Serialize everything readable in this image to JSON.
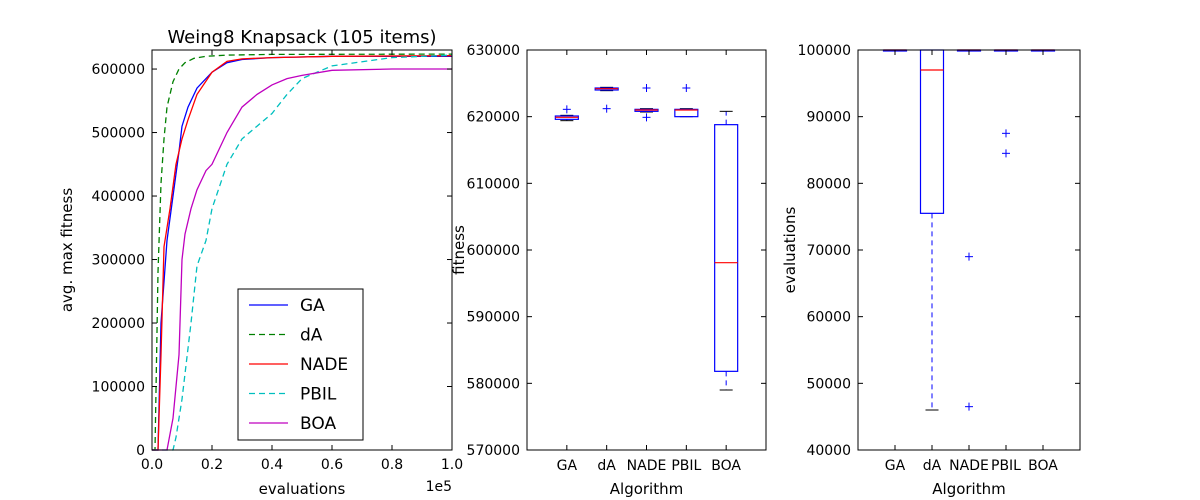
{
  "chart_data": [
    {
      "type": "line",
      "title": "Weing8 Knapsack (105 items)",
      "xlabel": "evaluations",
      "ylabel": "avg. max fitness",
      "x_offset_label": "1e5",
      "xlim": [
        0,
        1.0
      ],
      "ylim": [
        0,
        630000
      ],
      "xticks": [
        "0.0",
        "0.2",
        "0.4",
        "0.6",
        "0.8",
        "1.0"
      ],
      "yticks": [
        "0",
        "100000",
        "200000",
        "300000",
        "400000",
        "500000",
        "600000"
      ],
      "grid": false,
      "legend_position": "lower-center",
      "series": [
        {
          "name": "GA",
          "color": "#0000ff",
          "dash": "solid",
          "x": [
            0.0,
            0.02,
            0.03,
            0.05,
            0.07,
            0.09,
            0.1,
            0.12,
            0.15,
            0.2,
            0.25,
            0.3,
            0.4,
            0.5,
            0.6,
            1.0
          ],
          "y": [
            0,
            0,
            200000,
            330000,
            400000,
            470000,
            510000,
            540000,
            570000,
            595000,
            610000,
            615000,
            618000,
            619000,
            620000,
            620000
          ]
        },
        {
          "name": "dA",
          "color": "#008000",
          "dash": "dashed",
          "x": [
            0.0,
            0.01,
            0.02,
            0.03,
            0.04,
            0.05,
            0.07,
            0.09,
            0.11,
            0.14,
            0.18,
            0.25,
            0.4,
            1.0
          ],
          "y": [
            0,
            0,
            280000,
            420000,
            490000,
            540000,
            580000,
            600000,
            610000,
            617000,
            620000,
            622000,
            623000,
            623500
          ]
        },
        {
          "name": "NADE",
          "color": "#ff0000",
          "dash": "solid",
          "x": [
            0.0,
            0.02,
            0.03,
            0.04,
            0.06,
            0.08,
            0.1,
            0.12,
            0.15,
            0.2,
            0.25,
            0.3,
            0.4,
            0.6,
            1.0
          ],
          "y": [
            0,
            0,
            150000,
            320000,
            380000,
            450000,
            490000,
            520000,
            560000,
            595000,
            612000,
            616000,
            618000,
            620000,
            621000
          ]
        },
        {
          "name": "PBIL",
          "color": "#00bfbf",
          "dash": "dashed",
          "x": [
            0.0,
            0.07,
            0.08,
            0.1,
            0.13,
            0.15,
            0.18,
            0.2,
            0.25,
            0.3,
            0.35,
            0.4,
            0.45,
            0.5,
            0.6,
            0.8,
            1.0
          ],
          "y": [
            0,
            0,
            20000,
            80000,
            200000,
            290000,
            330000,
            380000,
            450000,
            490000,
            510000,
            530000,
            560000,
            585000,
            605000,
            618000,
            622000
          ]
        },
        {
          "name": "BOA",
          "color": "#bf00bf",
          "dash": "solid",
          "x": [
            0.0,
            0.05,
            0.07,
            0.09,
            0.1,
            0.11,
            0.13,
            0.15,
            0.18,
            0.2,
            0.25,
            0.3,
            0.35,
            0.4,
            0.45,
            0.5,
            0.6,
            0.8,
            1.0
          ],
          "y": [
            0,
            0,
            50000,
            150000,
            300000,
            340000,
            380000,
            410000,
            440000,
            450000,
            500000,
            540000,
            560000,
            575000,
            585000,
            590000,
            598000,
            600000,
            600000
          ]
        }
      ]
    },
    {
      "type": "box",
      "xlabel": "Algorithm",
      "ylabel": "fitness",
      "ylim": [
        570000,
        630000
      ],
      "yticks": [
        "570000",
        "580000",
        "590000",
        "600000",
        "610000",
        "620000",
        "630000"
      ],
      "categories": [
        "GA",
        "dA",
        "NADE",
        "PBIL",
        "BOA"
      ],
      "boxes": [
        {
          "whislo": 619400,
          "q1": 619600,
          "med": 619900,
          "q3": 620100,
          "whishi": 620200,
          "fliers": [
            621100
          ]
        },
        {
          "whislo": 623900,
          "q1": 624000,
          "med": 624200,
          "q3": 624300,
          "whishi": 624400,
          "fliers": [
            621200
          ]
        },
        {
          "whislo": 620700,
          "q1": 620800,
          "med": 621000,
          "q3": 621100,
          "whishi": 621200,
          "fliers": [
            624300,
            619900
          ]
        },
        {
          "whislo": 620000,
          "q1": 620000,
          "med": 621000,
          "q3": 621100,
          "whishi": 621200,
          "fliers": [
            624300
          ]
        },
        {
          "whislo": 579000,
          "q1": 581800,
          "med": 598100,
          "q3": 618800,
          "whishi": 620800,
          "fliers": []
        }
      ]
    },
    {
      "type": "box",
      "xlabel": "Algorithm",
      "ylabel": "evaluations",
      "ylim": [
        40000,
        100000
      ],
      "yticks": [
        "40000",
        "50000",
        "60000",
        "70000",
        "80000",
        "90000",
        "100000"
      ],
      "categories": [
        "GA",
        "dA",
        "NADE",
        "PBIL",
        "BOA"
      ],
      "boxes": [
        {
          "whislo": 100000,
          "q1": 100000,
          "med": 100000,
          "q3": 100000,
          "whishi": 100000,
          "fliers": []
        },
        {
          "whislo": 46000,
          "q1": 75500,
          "med": 97000,
          "q3": 100000,
          "whishi": 100000,
          "fliers": []
        },
        {
          "whislo": 100000,
          "q1": 100000,
          "med": 100000,
          "q3": 100000,
          "whishi": 100000,
          "fliers": [
            69000,
            46500
          ]
        },
        {
          "whislo": 100000,
          "q1": 100000,
          "med": 100000,
          "q3": 100000,
          "whishi": 100000,
          "fliers": [
            87500,
            84500
          ]
        },
        {
          "whislo": 100000,
          "q1": 100000,
          "med": 100000,
          "q3": 100000,
          "whishi": 100000,
          "fliers": []
        }
      ]
    }
  ]
}
